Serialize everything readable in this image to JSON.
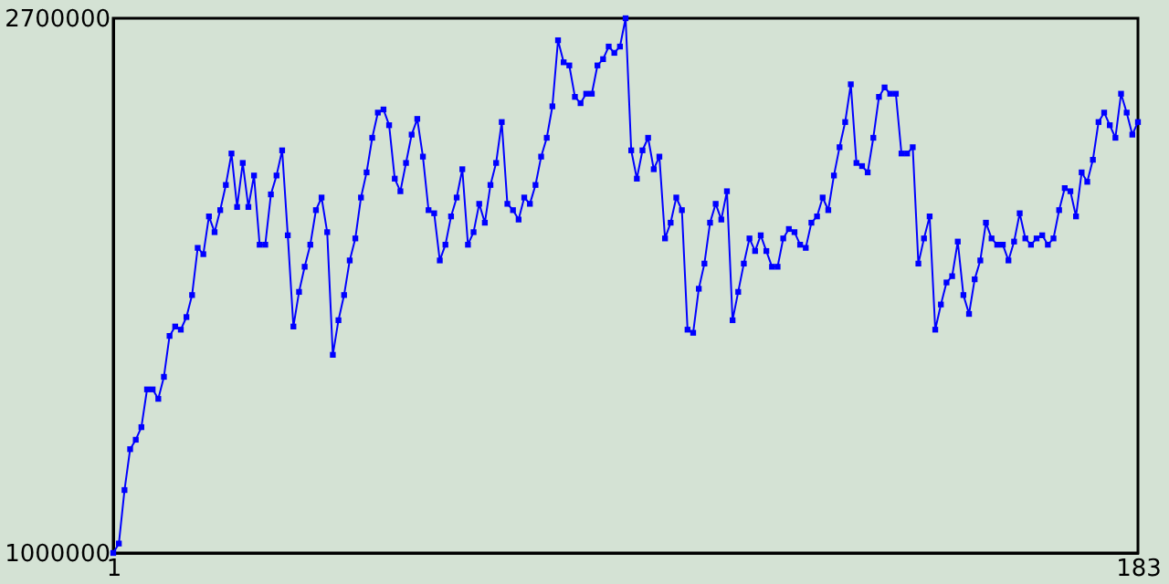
{
  "chart_data": {
    "type": "line",
    "marker": "square",
    "line_style": "solid",
    "grid": false,
    "x": [
      1,
      2,
      3,
      4,
      5,
      6,
      7,
      8,
      9,
      10,
      11,
      12,
      13,
      14,
      15,
      16,
      17,
      18,
      19,
      20,
      21,
      22,
      23,
      24,
      25,
      26,
      27,
      28,
      29,
      30,
      31,
      32,
      33,
      34,
      35,
      36,
      37,
      38,
      39,
      40,
      41,
      42,
      43,
      44,
      45,
      46,
      47,
      48,
      49,
      50,
      51,
      52,
      53,
      54,
      55,
      56,
      57,
      58,
      59,
      60,
      61,
      62,
      63,
      64,
      65,
      66,
      67,
      68,
      69,
      70,
      71,
      72,
      73,
      74,
      75,
      76,
      77,
      78,
      79,
      80,
      81,
      82,
      83,
      84,
      85,
      86,
      87,
      88,
      89,
      90,
      91,
      92,
      93,
      94,
      95,
      96,
      97,
      98,
      99,
      100,
      101,
      102,
      103,
      104,
      105,
      106,
      107,
      108,
      109,
      110,
      111,
      112,
      113,
      114,
      115,
      116,
      117,
      118,
      119,
      120,
      121,
      122,
      123,
      124,
      125,
      126,
      127,
      128,
      129,
      130,
      131,
      132,
      133,
      134,
      135,
      136,
      137,
      138,
      139,
      140,
      141,
      142,
      143,
      144,
      145,
      146,
      147,
      148,
      149,
      150,
      151,
      152,
      153,
      154,
      155,
      156,
      157,
      158,
      159,
      160,
      161,
      162,
      163,
      164,
      165,
      166,
      167,
      168,
      169,
      170,
      171,
      172,
      173,
      174,
      175,
      176,
      177,
      178,
      179,
      180,
      181,
      182,
      183
    ],
    "series": [
      {
        "color": "#0000ff",
        "values": [
          1000000,
          1030000,
          1200000,
          1330000,
          1360000,
          1400000,
          1520000,
          1520000,
          1490000,
          1560000,
          1690000,
          1720000,
          1710000,
          1750000,
          1820000,
          1970000,
          1950000,
          2070000,
          2020000,
          2090000,
          2170000,
          2270000,
          2100000,
          2240000,
          2100000,
          2200000,
          1980000,
          1980000,
          2140000,
          2200000,
          2280000,
          2010000,
          1720000,
          1830000,
          1910000,
          1980000,
          2090000,
          2130000,
          2020000,
          1630000,
          1740000,
          1820000,
          1930000,
          2000000,
          2130000,
          2210000,
          2320000,
          2400000,
          2410000,
          2360000,
          2190000,
          2150000,
          2240000,
          2330000,
          2380000,
          2260000,
          2090000,
          2080000,
          1930000,
          1980000,
          2070000,
          2130000,
          2220000,
          1980000,
          2020000,
          2110000,
          2050000,
          2170000,
          2240000,
          2370000,
          2110000,
          2090000,
          2060000,
          2130000,
          2110000,
          2170000,
          2260000,
          2320000,
          2420000,
          2630000,
          2560000,
          2550000,
          2450000,
          2430000,
          2460000,
          2460000,
          2550000,
          2570000,
          2610000,
          2590000,
          2610000,
          2700000,
          2280000,
          2190000,
          2280000,
          2320000,
          2220000,
          2260000,
          2000000,
          2050000,
          2130000,
          2090000,
          1710000,
          1700000,
          1840000,
          1920000,
          2050000,
          2110000,
          2060000,
          2150000,
          1740000,
          1830000,
          1920000,
          2000000,
          1960000,
          2010000,
          1960000,
          1910000,
          1910000,
          2000000,
          2030000,
          2020000,
          1980000,
          1970000,
          2050000,
          2070000,
          2130000,
          2090000,
          2200000,
          2290000,
          2370000,
          2490000,
          2240000,
          2230000,
          2210000,
          2320000,
          2450000,
          2480000,
          2460000,
          2460000,
          2270000,
          2270000,
          2290000,
          1920000,
          2000000,
          2070000,
          1710000,
          1790000,
          1860000,
          1880000,
          1990000,
          1820000,
          1760000,
          1870000,
          1930000,
          2050000,
          2000000,
          1980000,
          1980000,
          1930000,
          1990000,
          2080000,
          2000000,
          1980000,
          2000000,
          2010000,
          1980000,
          2000000,
          2090000,
          2160000,
          2150000,
          2070000,
          2210000,
          2180000,
          2250000,
          2370000,
          2400000,
          2360000,
          2320000,
          2460000,
          2400000,
          2330000,
          2370000
        ]
      }
    ],
    "xlim": [
      1,
      183
    ],
    "xticks": [
      1,
      183
    ],
    "ylim": [
      1000000,
      2700000
    ],
    "yticks": [
      1000000,
      2700000
    ]
  }
}
